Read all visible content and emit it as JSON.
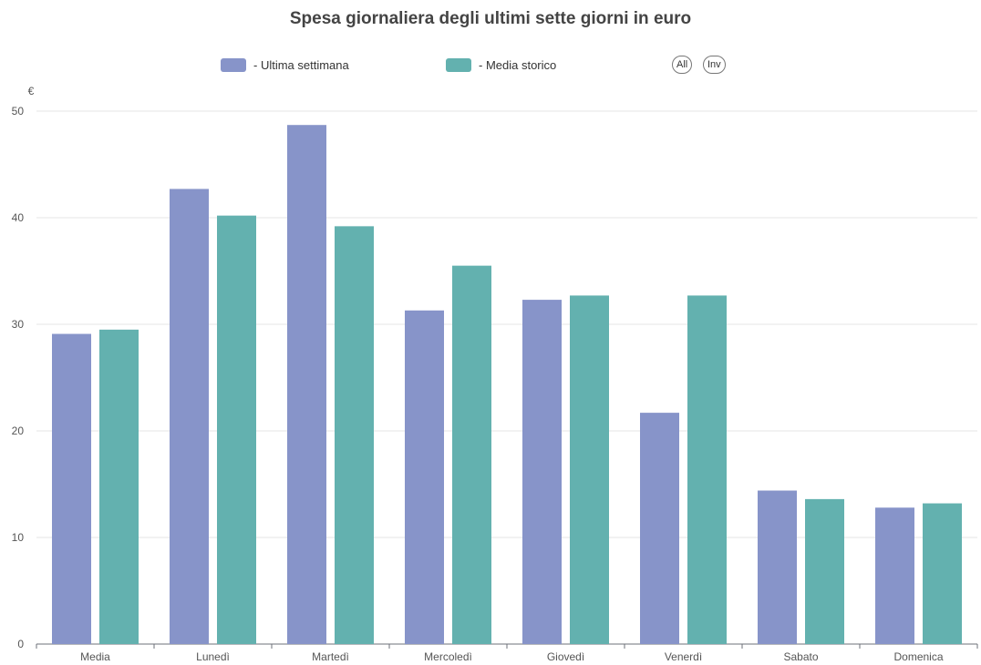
{
  "chart_data": {
    "type": "bar",
    "title": "Spesa giornaliera degli ultimi sette giorni in euro",
    "ylabel": "€",
    "xlabel": "",
    "categories": [
      "Media",
      "Lunedì",
      "Martedì",
      "Mercoledì",
      "Giovedì",
      "Venerdì",
      "Sabato",
      "Domenica"
    ],
    "series": [
      {
        "name": "- Ultima settimana",
        "color": "#8794C9",
        "values": [
          29.1,
          42.7,
          48.7,
          31.3,
          32.3,
          21.7,
          14.4,
          12.8
        ]
      },
      {
        "name": "- Media storico",
        "color": "#63B1AF",
        "values": [
          29.5,
          40.2,
          39.2,
          35.5,
          32.7,
          32.7,
          13.6,
          13.2
        ]
      }
    ],
    "ylim": [
      0,
      50
    ],
    "yticks": [
      0,
      10,
      20,
      30,
      40,
      50
    ],
    "grid": true,
    "legend_position": "top-center"
  },
  "legend_buttons": {
    "all": "All",
    "inv": "Inv"
  }
}
